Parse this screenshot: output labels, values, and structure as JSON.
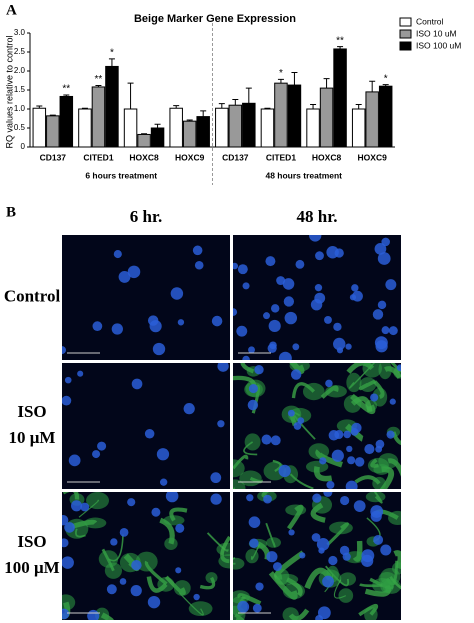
{
  "figure": {
    "panel_a_label": "A",
    "panel_b_label": "B",
    "columns": [
      "6 hr.",
      "48 hr."
    ],
    "rows": [
      [
        "Control"
      ],
      [
        "ISO",
        "10 μM"
      ],
      [
        "ISO",
        "100 μM"
      ]
    ]
  },
  "chart_data": {
    "type": "bar",
    "title": "Beige Marker Gene Expression",
    "y_label": "RQ values relative to control",
    "categories": [
      "CD137",
      "CITED1",
      "HOXC8",
      "HOXC9",
      "CD137",
      "CITED1",
      "HOXC8",
      "HOXC9"
    ],
    "groups": [
      "6 hours treatment",
      "48 hours treatment"
    ],
    "ylim": [
      0,
      3
    ],
    "yticks": [
      0,
      0.5,
      {
        "value": 1,
        "label": "1.0"
      },
      1.5,
      {
        "value": 2,
        "label": "2.0"
      },
      2.5,
      {
        "value": 3,
        "label": "3.0"
      }
    ],
    "legend": "top-right",
    "series": [
      {
        "name": "Control",
        "color": "#ffffff",
        "values": [
          1.02,
          1.0,
          1.0,
          1.02,
          1.02,
          1.0,
          1.0,
          1.0
        ],
        "errors": [
          0.06,
          0.02,
          0.68,
          0.07,
          0.12,
          0.02,
          0.12,
          0.12
        ],
        "significance": [
          null,
          null,
          null,
          null,
          null,
          null,
          null,
          null
        ]
      },
      {
        "name": "ISO 10 uM",
        "color": "#999999",
        "values": [
          0.82,
          1.58,
          0.33,
          0.68,
          1.1,
          1.68,
          1.55,
          1.45
        ],
        "errors": [
          0.02,
          0.04,
          0.02,
          0.03,
          0.15,
          0.1,
          0.25,
          0.28
        ],
        "significance": [
          null,
          "**",
          null,
          null,
          null,
          "*",
          null,
          null
        ]
      },
      {
        "name": "ISO 100 uM",
        "color": "#000000",
        "values": [
          1.33,
          2.12,
          0.5,
          0.8,
          1.15,
          1.63,
          2.58,
          1.6
        ],
        "errors": [
          0.04,
          0.2,
          0.1,
          0.15,
          0.4,
          0.33,
          0.06,
          0.04
        ],
        "significance": [
          "**",
          "*",
          null,
          null,
          null,
          null,
          "**",
          "*"
        ]
      }
    ]
  }
}
